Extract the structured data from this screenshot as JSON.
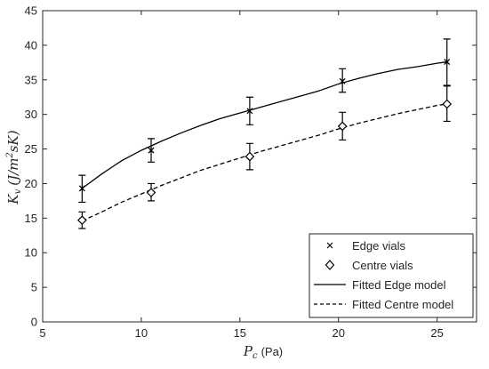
{
  "chart_data": {
    "type": "scatter",
    "xlabel": "P_c (Pa)",
    "xlabel_symbol": "P",
    "xlabel_sub": "c",
    "xlabel_unit": "(Pa)",
    "ylabel": "K_v (J/m^2sK)",
    "ylabel_symbol": "K",
    "ylabel_sub": "v",
    "ylabel_unit_pre": "(J/m",
    "ylabel_unit_sup": "2",
    "ylabel_unit_post": "sK)",
    "xlim": [
      5,
      27
    ],
    "ylim": [
      0,
      45
    ],
    "xticks": [
      5,
      10,
      15,
      20,
      25
    ],
    "yticks": [
      0,
      5,
      10,
      15,
      20,
      25,
      30,
      35,
      40,
      45
    ],
    "grid": false,
    "legend_position": "bottom-right",
    "series": [
      {
        "name": "Edge vials",
        "kind": "points",
        "marker": "x",
        "x": [
          7.0,
          10.5,
          15.5,
          20.2,
          25.5
        ],
        "y": [
          19.3,
          24.8,
          30.5,
          34.8,
          37.6
        ],
        "err_low": [
          17.3,
          23.1,
          28.5,
          33.2,
          34.2
        ],
        "err_high": [
          21.2,
          26.5,
          32.5,
          36.6,
          40.9
        ]
      },
      {
        "name": "Centre vials",
        "kind": "points",
        "marker": "diamond",
        "x": [
          7.0,
          10.5,
          15.5,
          20.2,
          25.5
        ],
        "y": [
          14.7,
          18.7,
          23.9,
          28.3,
          31.5
        ],
        "err_low": [
          13.5,
          17.5,
          22.0,
          26.3,
          29.0
        ],
        "err_high": [
          15.9,
          20.0,
          25.8,
          30.3,
          34.1
        ]
      },
      {
        "name": "Fitted Edge model",
        "kind": "line",
        "style": "solid",
        "x": [
          7.0,
          8.0,
          9.0,
          10.0,
          11.0,
          12.0,
          13.0,
          14.0,
          15.0,
          16.0,
          17.0,
          18.0,
          19.0,
          20.0,
          21.0,
          22.0,
          23.0,
          24.0,
          25.0,
          25.5
        ],
        "y": [
          19.3,
          21.4,
          23.3,
          24.8,
          26.1,
          27.3,
          28.4,
          29.4,
          30.2,
          31.0,
          31.8,
          32.6,
          33.4,
          34.4,
          35.2,
          35.9,
          36.5,
          36.9,
          37.4,
          37.6
        ]
      },
      {
        "name": "Fitted Centre model",
        "kind": "line",
        "style": "dashed",
        "x": [
          7.0,
          8.0,
          9.0,
          10.0,
          11.0,
          12.0,
          13.0,
          14.0,
          15.0,
          16.0,
          17.0,
          18.0,
          19.0,
          20.0,
          21.0,
          22.0,
          23.0,
          24.0,
          25.0,
          25.5
        ],
        "y": [
          14.6,
          15.9,
          17.3,
          18.5,
          19.7,
          20.8,
          21.9,
          22.8,
          23.7,
          24.6,
          25.4,
          26.2,
          27.0,
          27.9,
          28.7,
          29.4,
          30.1,
          30.7,
          31.3,
          31.5
        ]
      }
    ]
  }
}
